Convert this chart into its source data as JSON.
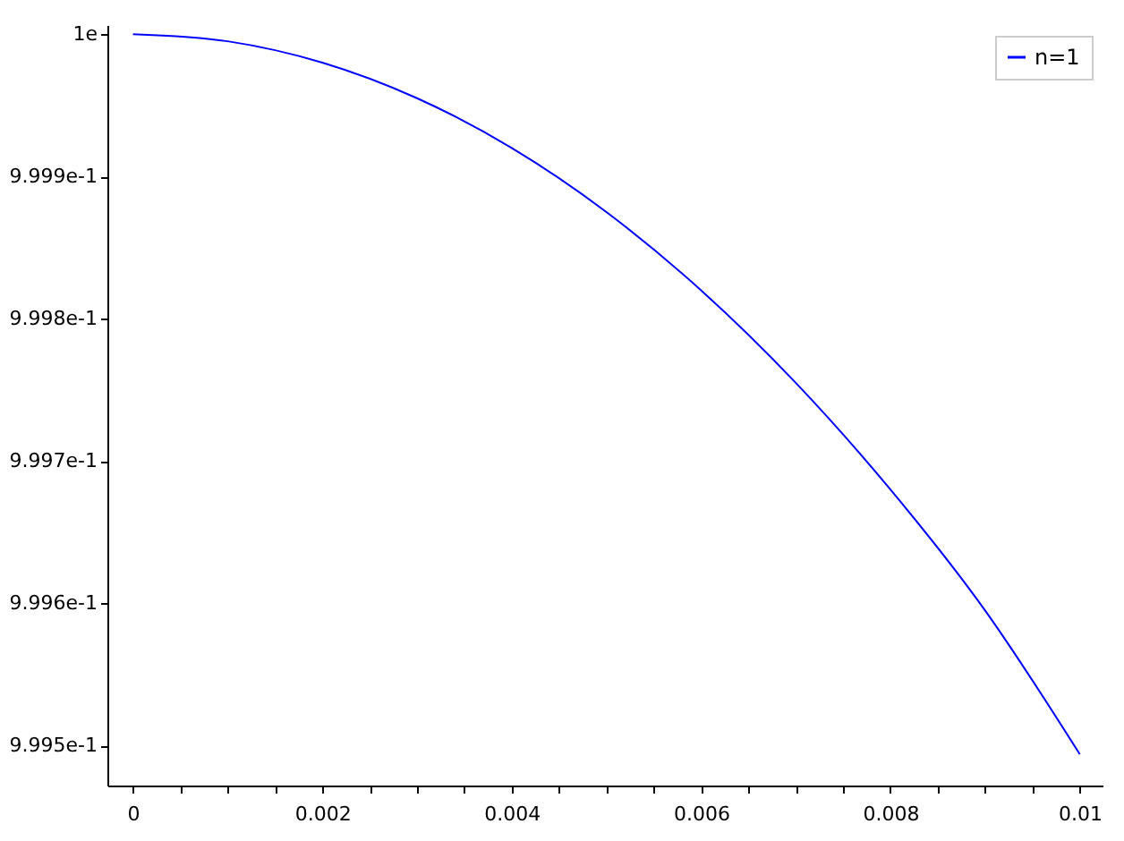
{
  "chart_data": {
    "type": "line",
    "x": [
      0,
      0.001,
      0.002,
      0.003,
      0.004,
      0.005,
      0.006,
      0.007,
      0.008,
      0.009,
      0.01
    ],
    "series": [
      {
        "name": "n=1",
        "color": "#0000ff",
        "values": [
          1,
          0.999995,
          0.99998,
          0.999955,
          0.99992,
          0.999875,
          0.99982,
          0.999755,
          0.99968,
          0.999595,
          0.999494
        ]
      }
    ],
    "xlim": [
      -0.00027,
      0.01024
    ],
    "xticks": [
      0,
      {
        "value": 0.0005,
        "label": null
      },
      {
        "value": 0.001,
        "label": null
      },
      {
        "value": 0.0015,
        "label": null
      },
      0.002,
      {
        "value": 0.0025,
        "label": null
      },
      {
        "value": 0.003,
        "label": null
      },
      {
        "value": 0.0035,
        "label": null
      },
      0.004,
      {
        "value": 0.0045,
        "label": null
      },
      {
        "value": 0.005,
        "label": null
      },
      {
        "value": 0.0055,
        "label": null
      },
      0.006,
      {
        "value": 0.0065,
        "label": null
      },
      {
        "value": 0.007,
        "label": null
      },
      {
        "value": 0.0075,
        "label": null
      },
      0.008,
      {
        "value": 0.0085,
        "label": null
      },
      {
        "value": 0.009,
        "label": null
      },
      {
        "value": 0.0095,
        "label": null
      },
      0.01
    ],
    "ylim": [
      0.999472,
      1.0000064
    ],
    "yticks": [
      {
        "value": 0.9995,
        "label": "9.995e-1"
      },
      {
        "value": 0.9996,
        "label": "9.996e-1"
      },
      {
        "value": 0.9997,
        "label": "9.997e-1"
      },
      {
        "value": 0.9998,
        "label": "9.998e-1"
      },
      {
        "value": 0.9999,
        "label": "9.999e-1"
      },
      {
        "value": 1,
        "label": "1e"
      }
    ],
    "grid": false,
    "legend": "top right",
    "marker": "none",
    "line_style": "solid"
  }
}
